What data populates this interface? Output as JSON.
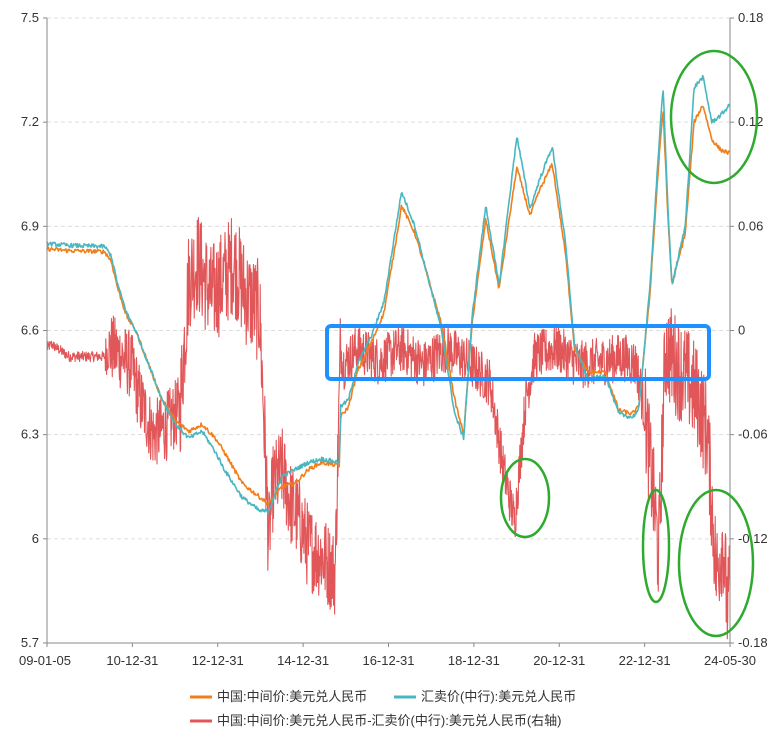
{
  "chart_data": {
    "type": "line",
    "title": "",
    "xlabel": "",
    "x_ticks": [
      "09-01-05",
      "10-12-31",
      "12-12-31",
      "14-12-31",
      "16-12-31",
      "18-12-31",
      "20-12-31",
      "22-12-31",
      "24-05-30"
    ],
    "x_range": [
      "2009-01-05",
      "2024-05-30"
    ],
    "left_axis": {
      "range": [
        5.7,
        7.5
      ],
      "ticks": [
        "5.7",
        "6",
        "6.3",
        "6.6",
        "6.9",
        "7.2",
        "7.5"
      ]
    },
    "right_axis": {
      "range": [
        -0.18,
        0.18
      ],
      "ticks": [
        "-0.18",
        "-0.12",
        "-0.06",
        "0",
        "0.06",
        "0.12",
        "0.18"
      ]
    },
    "series": [
      {
        "name": "中国:中间价:美元兑人民币",
        "axis": "left",
        "color": "#f07f1b",
        "x": [
          2009.0,
          2009.5,
          2010.3,
          2010.45,
          2010.6,
          2010.8,
          2011.0,
          2011.3,
          2011.6,
          2011.9,
          2012.2,
          2012.5,
          2012.8,
          2013.0,
          2013.4,
          2013.8,
          2014.0,
          2014.3,
          2014.6,
          2014.9,
          2015.2,
          2015.6,
          2015.62,
          2015.8,
          2016.0,
          2016.3,
          2016.6,
          2016.9,
          2017.0,
          2017.3,
          2017.6,
          2017.9,
          2018.2,
          2018.4,
          2018.6,
          2018.9,
          2019.2,
          2019.6,
          2019.9,
          2020.1,
          2020.4,
          2020.7,
          2020.9,
          2021.2,
          2021.6,
          2021.9,
          2022.2,
          2022.35,
          2022.6,
          2022.8,
          2022.9,
          2023.0,
          2023.1,
          2023.4,
          2023.6,
          2023.8,
          2024.0,
          2024.2,
          2024.41
        ],
        "values": [
          6.835,
          6.83,
          6.827,
          6.8,
          6.72,
          6.64,
          6.6,
          6.5,
          6.4,
          6.34,
          6.31,
          6.33,
          6.29,
          6.25,
          6.16,
          6.12,
          6.1,
          6.15,
          6.16,
          6.2,
          6.22,
          6.21,
          6.35,
          6.38,
          6.48,
          6.56,
          6.65,
          6.88,
          6.96,
          6.88,
          6.75,
          6.62,
          6.4,
          6.3,
          6.63,
          6.92,
          6.72,
          7.07,
          6.93,
          7.0,
          7.08,
          6.82,
          6.55,
          6.48,
          6.48,
          6.37,
          6.36,
          6.38,
          6.7,
          7.08,
          7.24,
          6.95,
          6.73,
          6.88,
          7.2,
          7.25,
          7.15,
          7.12,
          7.11
        ]
      },
      {
        "name": "汇卖价(中行):美元兑人民币",
        "axis": "left",
        "color": "#4ab7c0",
        "x": [
          2009.0,
          2009.5,
          2010.3,
          2010.45,
          2010.6,
          2010.8,
          2011.0,
          2011.3,
          2011.6,
          2011.9,
          2012.2,
          2012.5,
          2012.8,
          2013.0,
          2013.4,
          2013.8,
          2014.0,
          2014.3,
          2014.6,
          2014.9,
          2015.2,
          2015.6,
          2015.62,
          2015.8,
          2016.0,
          2016.3,
          2016.6,
          2016.9,
          2017.0,
          2017.3,
          2017.6,
          2017.9,
          2018.2,
          2018.4,
          2018.6,
          2018.9,
          2019.2,
          2019.6,
          2019.9,
          2020.1,
          2020.4,
          2020.7,
          2020.9,
          2021.2,
          2021.6,
          2021.9,
          2022.2,
          2022.35,
          2022.6,
          2022.8,
          2022.9,
          2023.0,
          2023.1,
          2023.4,
          2023.6,
          2023.8,
          2024.0,
          2024.2,
          2024.41
        ],
        "values": [
          6.85,
          6.845,
          6.842,
          6.815,
          6.73,
          6.65,
          6.6,
          6.5,
          6.4,
          6.33,
          6.29,
          6.31,
          6.25,
          6.2,
          6.12,
          6.08,
          6.08,
          6.18,
          6.2,
          6.22,
          6.23,
          6.22,
          6.38,
          6.4,
          6.5,
          6.58,
          6.68,
          6.92,
          7.0,
          6.9,
          6.75,
          6.6,
          6.36,
          6.29,
          6.65,
          6.96,
          6.73,
          7.16,
          6.95,
          7.03,
          7.13,
          6.85,
          6.56,
          6.46,
          6.47,
          6.36,
          6.35,
          6.37,
          6.72,
          7.12,
          7.3,
          6.98,
          6.73,
          6.9,
          7.3,
          7.33,
          7.2,
          7.22,
          7.25
        ]
      },
      {
        "name": "中国:中间价:美元兑人民币-汇卖价(中行):美元兑人民币(右轴)",
        "axis": "right",
        "color": "#e15759",
        "x": [
          2009.0,
          2009.1,
          2009.5,
          2010.3,
          2010.45,
          2010.6,
          2010.9,
          2011.1,
          2011.4,
          2011.7,
          2012.0,
          2012.2,
          2012.4,
          2012.7,
          2013.0,
          2013.2,
          2013.5,
          2013.8,
          2014.0,
          2014.1,
          2014.3,
          2014.5,
          2014.7,
          2014.9,
          2015.2,
          2015.5,
          2015.62,
          2015.7,
          2016.0,
          2016.5,
          2017.0,
          2017.5,
          2018.0,
          2018.5,
          2019.0,
          2019.3,
          2019.55,
          2019.8,
          2020.0,
          2020.5,
          2021.0,
          2021.5,
          2022.0,
          2022.3,
          2022.5,
          2022.7,
          2022.8,
          2022.95,
          2023.2,
          2023.5,
          2023.7,
          2023.9,
          2024.1,
          2024.25,
          2024.35,
          2024.41
        ],
        "values": [
          -0.01,
          -0.008,
          -0.015,
          -0.015,
          -0.01,
          -0.013,
          -0.02,
          -0.04,
          -0.06,
          -0.055,
          -0.045,
          0.03,
          0.04,
          0.02,
          0.03,
          0.04,
          0.02,
          0.01,
          -0.12,
          -0.09,
          -0.08,
          -0.1,
          -0.11,
          -0.125,
          -0.13,
          -0.14,
          -0.01,
          -0.02,
          -0.01,
          -0.018,
          -0.01,
          -0.02,
          -0.01,
          -0.018,
          -0.03,
          -0.08,
          -0.11,
          -0.04,
          -0.015,
          -0.01,
          -0.02,
          -0.018,
          -0.015,
          -0.02,
          -0.05,
          -0.1,
          -0.13,
          -0.01,
          -0.02,
          -0.03,
          -0.04,
          -0.06,
          -0.14,
          -0.12,
          -0.16,
          -0.15
        ]
      }
    ],
    "legend": {
      "position": "bottom"
    },
    "grid": {
      "horizontal": true,
      "vertical": false
    },
    "annotations": [
      {
        "type": "rectangle",
        "color": "#1e90ff",
        "note": "highlight of near-zero spread band 2015-2022"
      },
      {
        "type": "ellipse",
        "color": "#2eaa2e",
        "note": "spread dip 2019"
      },
      {
        "type": "ellipse",
        "color": "#2eaa2e",
        "note": "spread dip 2022"
      },
      {
        "type": "ellipse",
        "color": "#2eaa2e",
        "note": "spread dip 2024"
      },
      {
        "type": "ellipse",
        "color": "#2eaa2e",
        "note": "rate peak 2023-2024"
      }
    ],
    "colors": {
      "axis": "#888888",
      "grid": "#dddddd",
      "annotation_rect": "#1e90ff",
      "annotation_ellipse": "#2eaa2e"
    }
  }
}
